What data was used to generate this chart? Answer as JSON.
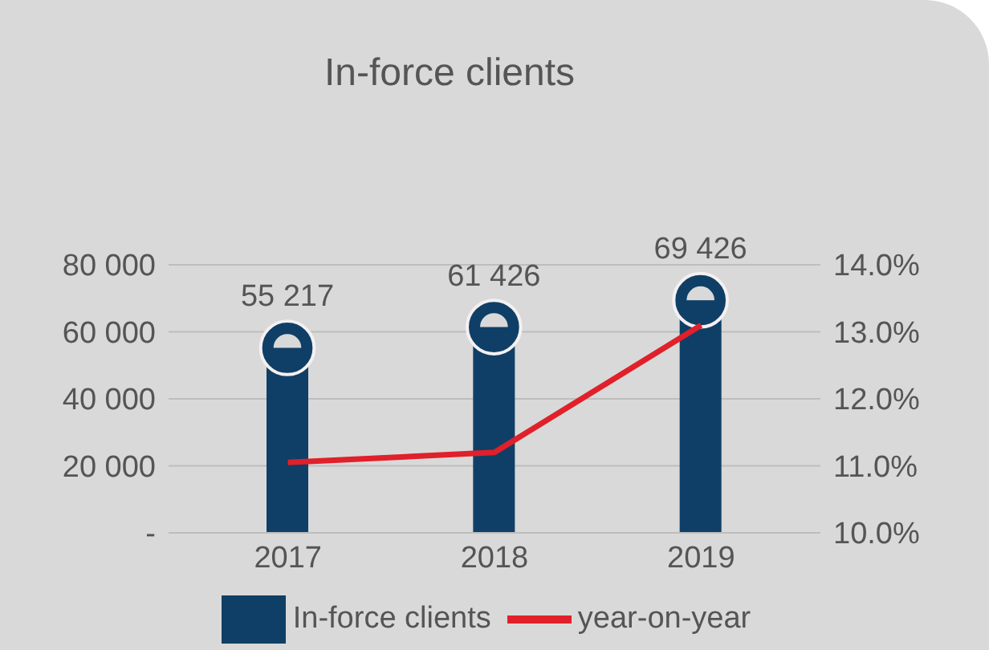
{
  "chart_data": {
    "type": "bar",
    "title": "In-force clients",
    "categories": [
      "2017",
      "2018",
      "2019"
    ],
    "series": [
      {
        "name": "In-force clients",
        "color": "#0f3f66",
        "values": [
          55217,
          61426,
          69426
        ],
        "value_labels": [
          "55 217",
          "61 426",
          "69 426"
        ]
      },
      {
        "name": "year-on-year",
        "type": "line",
        "axis": "y2",
        "color": "#e0202a",
        "values": [
          11.05,
          11.2,
          13.1
        ]
      }
    ],
    "ylim": [
      0,
      80000
    ],
    "yticks": [
      {
        "value": 0,
        "label": "-"
      },
      {
        "value": 20000,
        "label": "20 000"
      },
      {
        "value": 40000,
        "label": "40 000"
      },
      {
        "value": 60000,
        "label": "60 000"
      },
      {
        "value": 80000,
        "label": "80 000"
      }
    ],
    "y2lim": [
      10,
      14
    ],
    "y2ticks": [
      {
        "value": 10,
        "label": "10.0%"
      },
      {
        "value": 11,
        "label": "11.0%"
      },
      {
        "value": 12,
        "label": "12.0%"
      },
      {
        "value": 13,
        "label": "13.0%"
      },
      {
        "value": 14,
        "label": "14.0%"
      }
    ],
    "grid": "y",
    "legend": "bottom",
    "marker": "none"
  }
}
